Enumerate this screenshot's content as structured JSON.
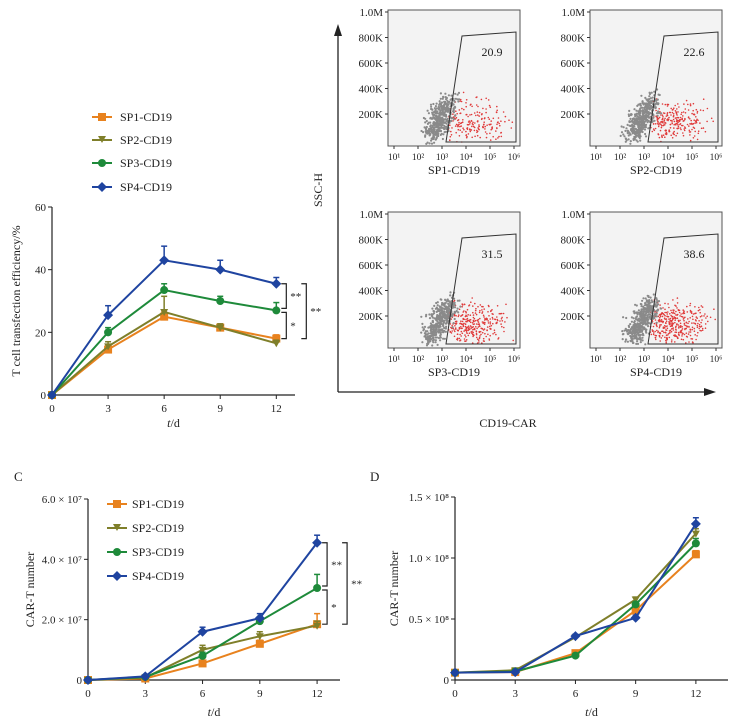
{
  "colors": {
    "SP1": "#e8821e",
    "SP2": "#7f7f2a",
    "SP3": "#1e8a3a",
    "SP4": "#1f44a0",
    "axis": "#222222",
    "gate": "#333333",
    "dot_gray": "#8a8a8a",
    "dot_red": "#e03a3a",
    "plot_bg": "#f3f3f3"
  },
  "series_names": [
    "SP1-CD19",
    "SP2-CD19",
    "SP3-CD19",
    "SP4-CD19"
  ],
  "panel_letters": {
    "c": "C",
    "d": "D"
  },
  "flow": {
    "x_title": "CD19-CAR",
    "y_title": "SSC-H",
    "y_ticks": [
      "1.0M",
      "800K",
      "600K",
      "400K",
      "200K"
    ],
    "x_ticks": [
      "10¹",
      "10²",
      "10³",
      "10⁴",
      "10⁵",
      "10⁶"
    ],
    "plots": [
      {
        "name": "SP1-CD19",
        "value": "20.9"
      },
      {
        "name": "SP2-CD19",
        "value": "22.6"
      },
      {
        "name": "SP3-CD19",
        "value": "31.5"
      },
      {
        "name": "SP4-CD19",
        "value": "38.6"
      }
    ]
  },
  "chart_data": [
    {
      "type": "line",
      "ylabel": "T cell transfection efficiency/%",
      "xlabel": "t/d",
      "x": [
        0,
        3,
        6,
        9,
        12
      ],
      "ylim": [
        0,
        60
      ],
      "yticks": [
        "0",
        "20",
        "40",
        "60"
      ],
      "xticks": [
        "0",
        "3",
        "6",
        "9",
        "12"
      ],
      "series": [
        {
          "name": "SP1-CD19",
          "values": [
            0,
            14.5,
            25,
            21.5,
            18
          ],
          "err": [
            0,
            1.0,
            1.5,
            1.2,
            1.2
          ]
        },
        {
          "name": "SP2-CD19",
          "values": [
            0,
            15.5,
            26.5,
            21.5,
            16.5
          ],
          "err": [
            0,
            1.5,
            5,
            1.2,
            1.0
          ]
        },
        {
          "name": "SP3-CD19",
          "values": [
            0,
            20,
            33.5,
            30,
            27
          ],
          "err": [
            0,
            1.5,
            2,
            1.5,
            2.5
          ]
        },
        {
          "name": "SP4-CD19",
          "values": [
            0,
            25.5,
            43,
            40,
            35.5
          ],
          "err": [
            0,
            3,
            4.5,
            3,
            2
          ]
        }
      ],
      "annotations": [
        "*",
        "**",
        "**"
      ]
    },
    {
      "type": "line",
      "ylabel": "CAR-T number",
      "xlabel": "t/d",
      "x": [
        0,
        3,
        6,
        9,
        12
      ],
      "ylim": [
        0,
        60000000
      ],
      "yticks": [
        "0",
        "2.0 × 10⁷",
        "4.0 × 10⁷",
        "6.0 × 10⁷"
      ],
      "xticks": [
        "0",
        "3",
        "6",
        "9",
        "12"
      ],
      "series": [
        {
          "name": "SP1-CD19",
          "values": [
            0,
            500000,
            5500000,
            12000000,
            18500000
          ],
          "err": [
            0,
            300000,
            800000,
            1200000,
            3500000
          ]
        },
        {
          "name": "SP2-CD19",
          "values": [
            0,
            800000,
            10000000,
            14500000,
            18000000
          ],
          "err": [
            0,
            300000,
            1500000,
            1500000,
            1500000
          ]
        },
        {
          "name": "SP3-CD19",
          "values": [
            0,
            1000000,
            8000000,
            19500000,
            30500000
          ],
          "err": [
            0,
            300000,
            1200000,
            1500000,
            4500000
          ]
        },
        {
          "name": "SP4-CD19",
          "values": [
            0,
            1200000,
            16000000,
            20500000,
            45500000
          ],
          "err": [
            0,
            300000,
            1500000,
            1500000,
            2500000
          ]
        }
      ],
      "annotations": [
        "*",
        "**",
        "**"
      ]
    },
    {
      "type": "line",
      "ylabel": "CAR-T number",
      "xlabel": "t/d",
      "x": [
        0,
        3,
        6,
        9,
        12
      ],
      "ylim": [
        0,
        150000000
      ],
      "yticks": [
        "0",
        "0.5 × 10⁸",
        "1.0 × 10⁸",
        "1.5 × 10⁸"
      ],
      "xticks": [
        "0",
        "3",
        "6",
        "9",
        "12"
      ],
      "series": [
        {
          "name": "SP1-CD19",
          "values": [
            6000000,
            6500000,
            22000000,
            57000000,
            103000000
          ],
          "err": [
            0,
            0,
            1500000,
            2000000,
            3000000
          ]
        },
        {
          "name": "SP2-CD19",
          "values": [
            6000000,
            8000000,
            35000000,
            66000000,
            120000000
          ],
          "err": [
            0,
            0,
            1500000,
            2000000,
            4000000
          ]
        },
        {
          "name": "SP3-CD19",
          "values": [
            6000000,
            7000000,
            20000000,
            62000000,
            112000000
          ],
          "err": [
            0,
            0,
            1500000,
            2000000,
            4000000
          ]
        },
        {
          "name": "SP4-CD19",
          "values": [
            6000000,
            6500000,
            36000000,
            51000000,
            128000000
          ],
          "err": [
            0,
            0,
            1500000,
            2000000,
            5000000
          ]
        }
      ]
    }
  ]
}
